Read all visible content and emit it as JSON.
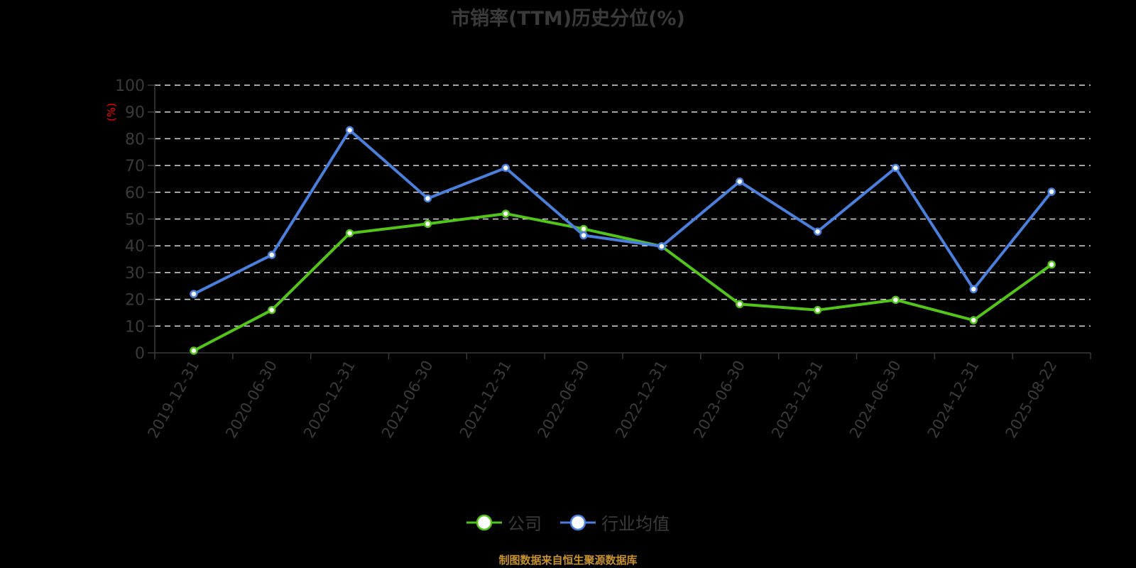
{
  "title": "市销率(TTM)历史分位(%)",
  "yaxis_unit_label": "(%)",
  "colors": {
    "company": "#52c41a",
    "industry": "#4a7fdc",
    "unit_label": "#ff0000",
    "axis_text": "#3a3a3a",
    "grid": "#d9d9d9",
    "source": "#c8922a"
  },
  "legend": {
    "company": "公司",
    "industry": "行业均值"
  },
  "source_note": "制图数据来自恒生聚源数据库",
  "chart_data": {
    "type": "line",
    "title": "市销率(TTM)历史分位(%)",
    "xlabel": "",
    "ylabel": "(%)",
    "ylim": [
      0,
      100
    ],
    "yticks": [
      0,
      10,
      20,
      30,
      40,
      50,
      60,
      70,
      80,
      90,
      100
    ],
    "grid": true,
    "legend_position": "bottom",
    "categories": [
      "2019-12-31",
      "2020-06-30",
      "2020-12-31",
      "2021-06-30",
      "2021-12-31",
      "2022-06-30",
      "2022-12-31",
      "2023-06-30",
      "2023-12-31",
      "2024-06-30",
      "2024-12-31",
      "2025-08-22"
    ],
    "series": [
      {
        "name": "公司",
        "values": [
          0.8,
          16.0,
          44.7,
          48.2,
          52.0,
          46.3,
          39.8,
          18.2,
          16.0,
          19.8,
          12.2,
          33.0
        ]
      },
      {
        "name": "行业均值",
        "values": [
          22.0,
          36.6,
          83.2,
          57.7,
          69.1,
          43.9,
          39.8,
          64.0,
          45.3,
          69.1,
          23.8,
          60.2
        ]
      }
    ]
  }
}
